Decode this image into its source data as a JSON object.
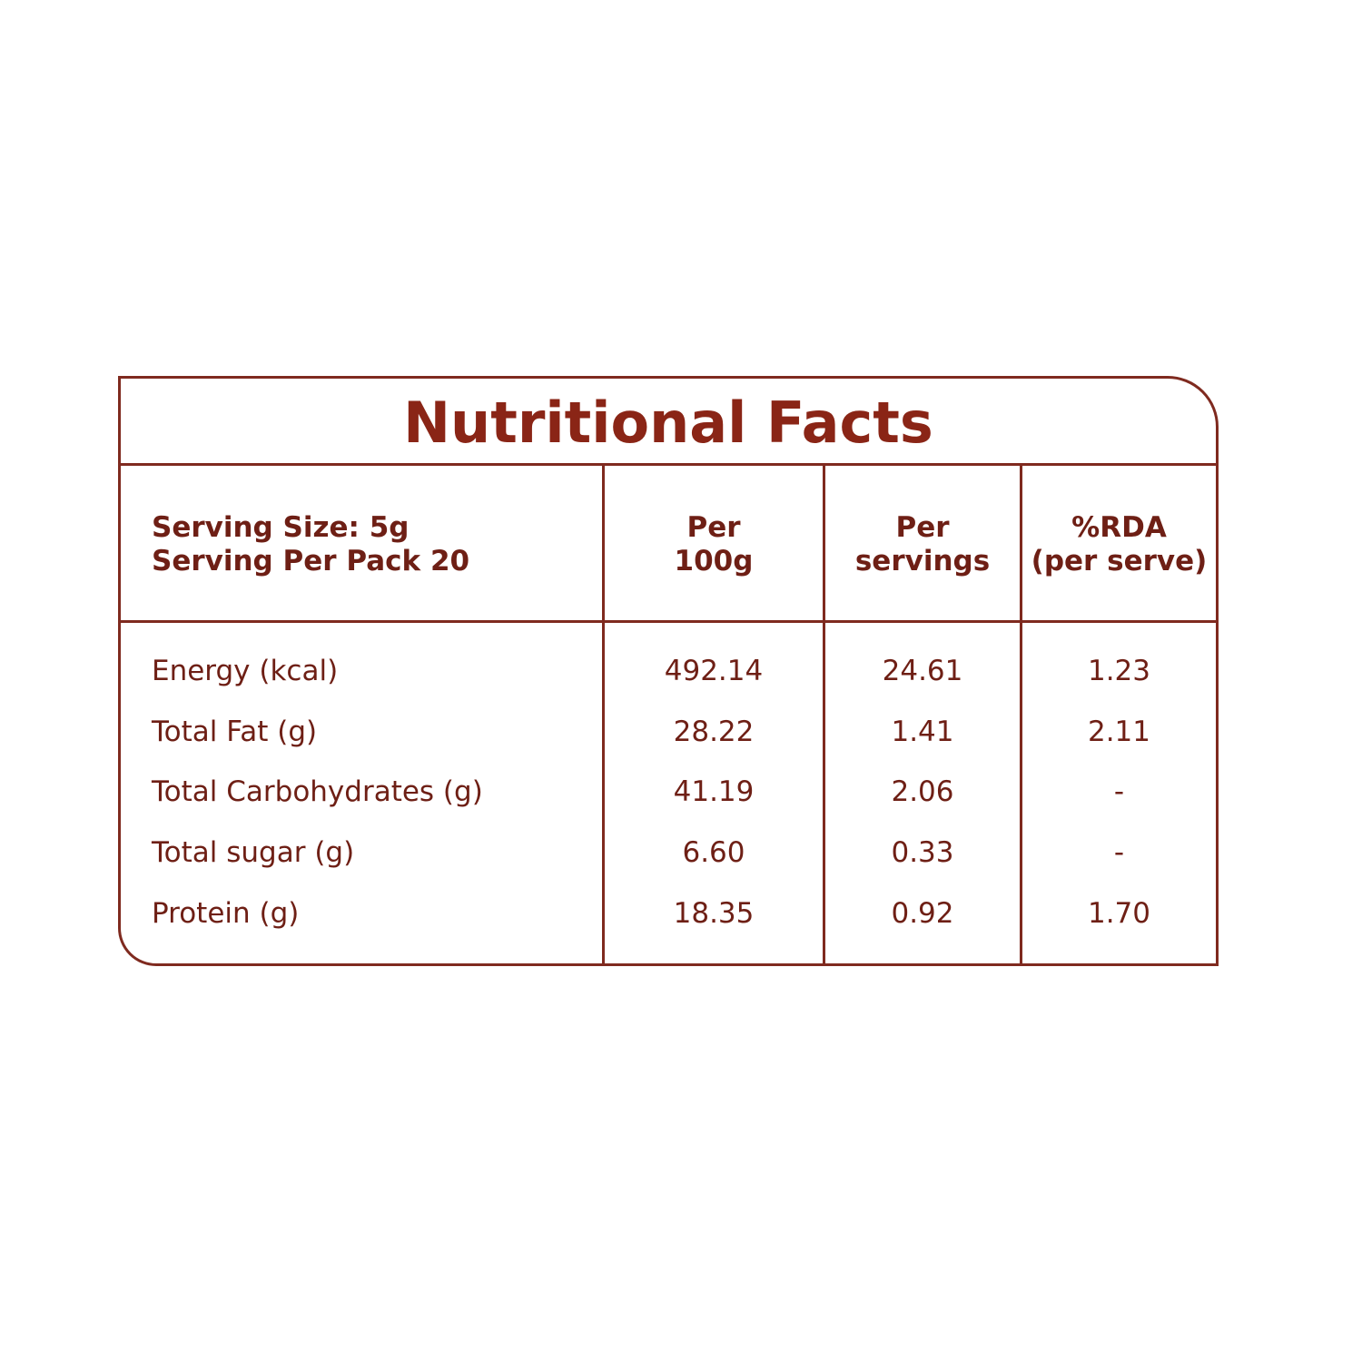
{
  "title": "Nutritional Facts",
  "header": {
    "serving_size": "Serving Size: 5g",
    "serving_per_pack": "Serving Per Pack 20",
    "col1": [
      "Per",
      "100g"
    ],
    "col2": [
      "Per",
      "servings"
    ],
    "col3": [
      "%RDA",
      "(per serve)"
    ]
  },
  "rows": [
    {
      "name": "Energy (kcal)",
      "per100g": "492.14",
      "perServing": "24.61",
      "rda": "1.23"
    },
    {
      "name": "Total Fat (g)",
      "per100g": "28.22",
      "perServing": "1.41",
      "rda": "2.11"
    },
    {
      "name": "Total Carbohydrates  (g)",
      "per100g": "41.19",
      "perServing": "2.06",
      "rda": "-"
    },
    {
      "name": "Total sugar (g)",
      "per100g": "6.60",
      "perServing": "0.33",
      "rda": "-"
    },
    {
      "name": "Protein (g)",
      "per100g": "18.35",
      "perServing": "0.92",
      "rda": "1.70"
    }
  ],
  "colors": {
    "border": "#7f2a1f",
    "title": "#8a2516",
    "text": "#6e1f15"
  }
}
